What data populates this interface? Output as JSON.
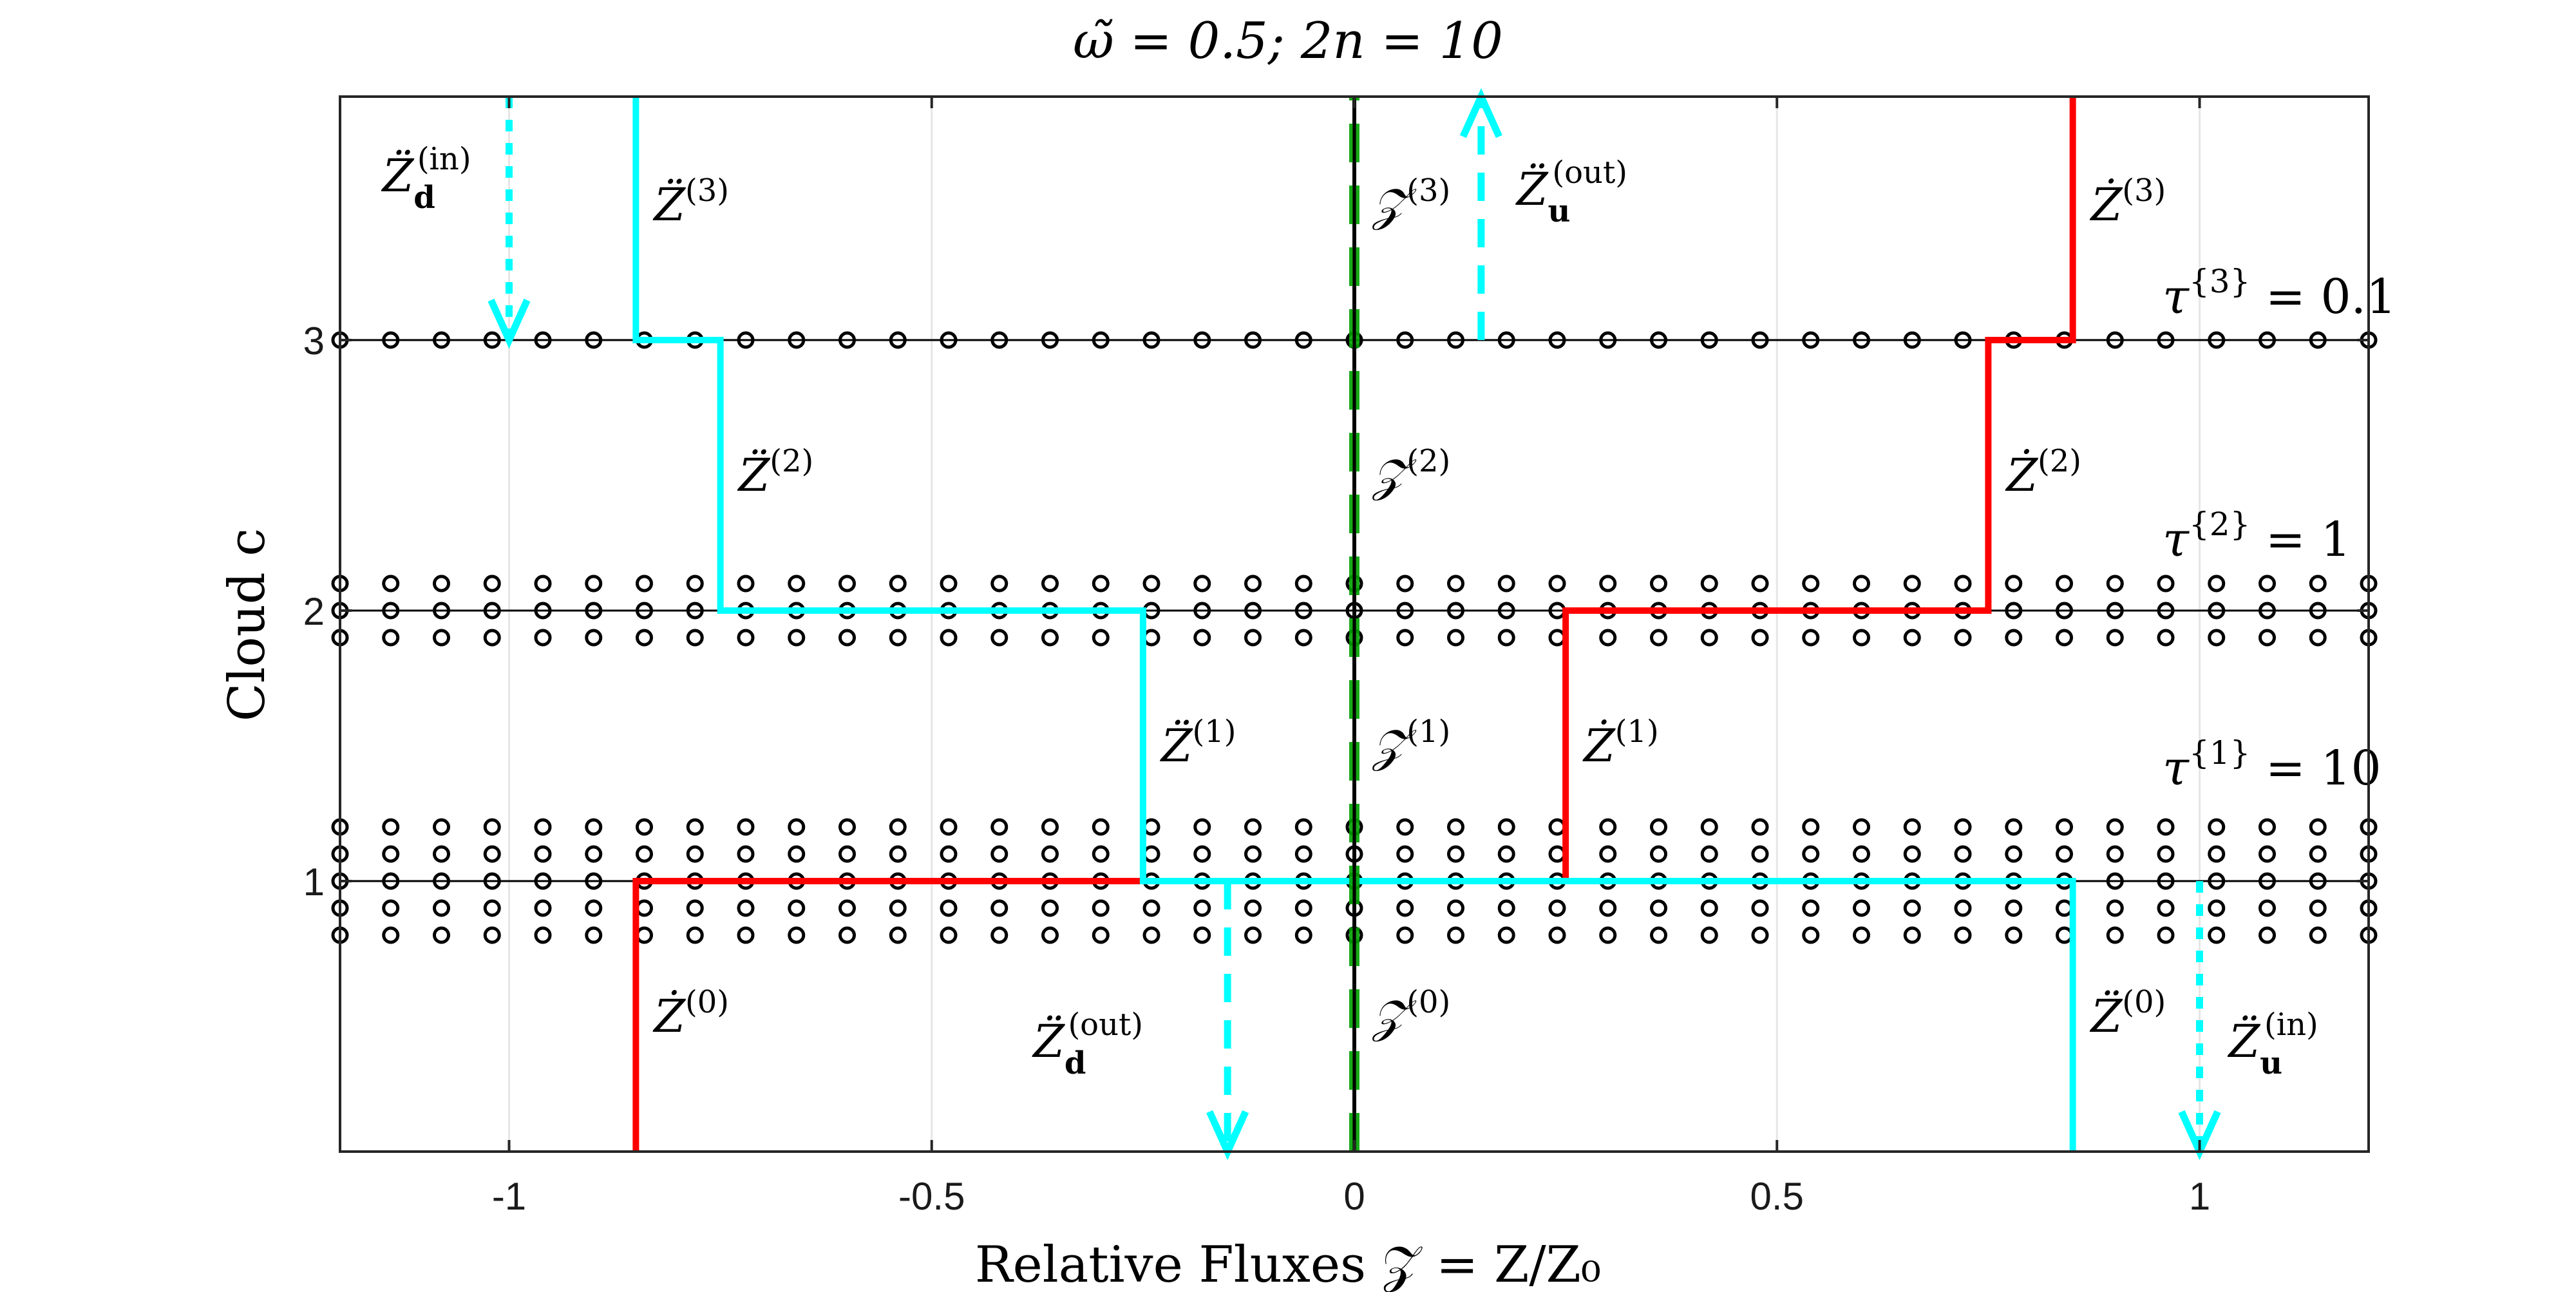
{
  "chart_data": {
    "type": "line",
    "title": "ω̃ = 0.5;    2n = 10",
    "xlabel": "Relative Fluxes 𝒵 = Z/Z₀",
    "ylabel": "Cloud c",
    "xlim": [
      -1.2,
      1.2
    ],
    "ylim": [
      0,
      3.9
    ],
    "x_ticks": [
      -1,
      -0.5,
      0,
      0.5,
      1
    ],
    "x_tick_labels": [
      "-1",
      "-0.5",
      "0",
      "0.5",
      "1"
    ],
    "y_ticks": [
      1,
      2,
      3
    ],
    "y_tick_labels": [
      "1",
      "2",
      "3"
    ],
    "grid": "x-only",
    "colors": {
      "up": "#ff0000",
      "down": "#00ffff",
      "zero": "#000000",
      "zero_dash": "#00a000",
      "dots": "#000000"
    },
    "cloud_levels": [
      {
        "c": 1,
        "rows": [
          0.8,
          0.9,
          1.0,
          1.1,
          1.2
        ],
        "label": "τ^{1} = 10"
      },
      {
        "c": 2,
        "rows": [
          1.9,
          2.0,
          2.1
        ],
        "label": "τ^{2} = 1"
      },
      {
        "c": 3,
        "rows": [
          3.0
        ],
        "label": "τ^{3} = 0.1"
      }
    ],
    "dots_per_row": 41,
    "series": [
      {
        "points": [
          [
            -0.85,
            0
          ],
          [
            -0.85,
            1
          ],
          [
            0.25,
            1
          ],
          [
            0.25,
            2
          ],
          [
            0.75,
            2
          ],
          [
            0.75,
            3
          ],
          [
            0.85,
            3
          ],
          [
            0.85,
            3.9
          ]
        ],
        "labels": [
          {
            "text": "Ż",
            "sup": "(0)",
            "x": -0.85,
            "y": 0.5
          },
          {
            "text": "Ż",
            "sup": "(1)",
            "x": 0.25,
            "y": 1.5
          },
          {
            "text": "Ż",
            "sup": "(2)",
            "x": 0.75,
            "y": 2.5
          },
          {
            "text": "Ż",
            "sup": "(3)",
            "x": 0.85,
            "y": 3.5
          }
        ]
      },
      {
        "points": [
          [
            0.85,
            0
          ],
          [
            0.85,
            1
          ],
          [
            -0.25,
            1
          ],
          [
            -0.25,
            2
          ],
          [
            -0.75,
            2
          ],
          [
            -0.75,
            3
          ],
          [
            -0.85,
            3
          ],
          [
            -0.85,
            3.9
          ]
        ],
        "labels": [
          {
            "text": "Z̈",
            "sup": "(0)",
            "x": 0.85,
            "y": 0.5
          },
          {
            "text": "Z̈",
            "sup": "(1)",
            "x": -0.25,
            "y": 1.5
          },
          {
            "text": "Z̈",
            "sup": "(2)",
            "x": -0.75,
            "y": 2.5
          },
          {
            "text": "Z̈",
            "sup": "(3)",
            "x": -0.85,
            "y": 3.5
          }
        ]
      },
      {
        "points": [
          [
            0,
            0
          ],
          [
            0,
            3.9
          ]
        ],
        "labels": [
          {
            "text": "𝒵",
            "sup": "(0)",
            "x": 0,
            "y": 0.5
          },
          {
            "text": "𝒵",
            "sup": "(1)",
            "x": 0,
            "y": 1.5
          },
          {
            "text": "𝒵",
            "sup": "(2)",
            "x": 0,
            "y": 2.5
          },
          {
            "text": "𝒵",
            "sup": "(3)",
            "x": 0,
            "y": 3.5
          }
        ]
      }
    ],
    "arrows": [
      {
        "x": -1,
        "y_from": 3.9,
        "y_to": 3.0,
        "style": "dotted",
        "label": "Z̈",
        "sub": "d",
        "sup": "(in)"
      },
      {
        "x": 0.15,
        "y_from": 3.0,
        "y_to": 3.9,
        "style": "dashed",
        "label": "Z̈",
        "sub": "u",
        "sup": "(out)"
      },
      {
        "x": -0.15,
        "y_from": 1.0,
        "y_to": 0,
        "style": "dashed",
        "label": "Z̈",
        "sub": "d",
        "sup": "(out)"
      },
      {
        "x": 1,
        "y_from": 1.0,
        "y_to": 0,
        "style": "dotted-up",
        "label": "Z̈",
        "sub": "u",
        "sup": "(in)"
      }
    ]
  }
}
